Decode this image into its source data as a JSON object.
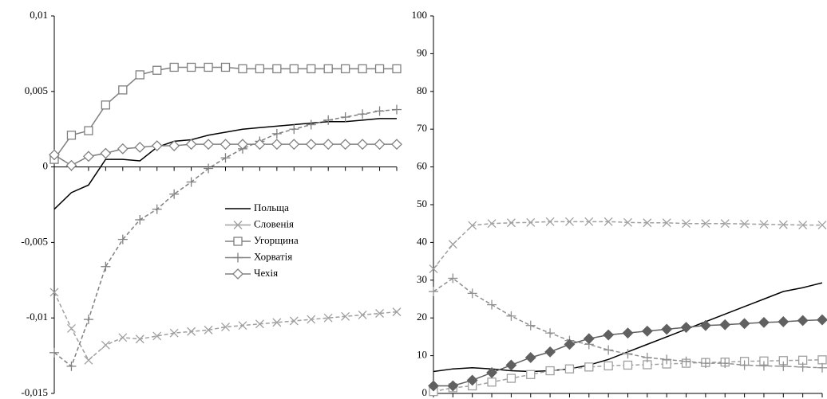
{
  "chart_data": [
    {
      "type": "line",
      "categories": [
        null,
        null,
        null,
        null,
        null,
        null,
        null,
        null,
        null,
        null,
        null,
        null,
        null,
        null,
        null,
        null,
        null,
        null,
        null,
        null,
        null
      ],
      "ylim": [
        -0.015,
        0.01
      ],
      "yticks": [
        {
          "value": -0.015,
          "label": "-0,015"
        },
        {
          "value": -0.01,
          "label": "-0,01"
        },
        {
          "value": -0.005,
          "label": "-0,005"
        },
        0,
        {
          "value": 0.005,
          "label": "0,005"
        },
        {
          "value": 0.01,
          "label": "0,01"
        }
      ],
      "series": [
        {
          "name": "Польща",
          "color": "#000000",
          "marker": "none",
          "dashed": false,
          "values": [
            -0.0028,
            -0.0017,
            -0.0012,
            0.0005,
            0.0005,
            0.0004,
            0.0013,
            0.0017,
            0.0018,
            0.0021,
            0.0023,
            0.0025,
            0.0026,
            0.0027,
            0.0028,
            0.0029,
            0.003,
            0.003,
            0.0031,
            0.0032,
            0.0032
          ]
        },
        {
          "name": "Словенія",
          "color": "#a0a0a0",
          "marker": "x",
          "dashed": true,
          "values": [
            -0.0083,
            -0.0107,
            -0.0128,
            -0.0118,
            -0.0113,
            -0.0114,
            -0.0112,
            -0.011,
            -0.0109,
            -0.0108,
            -0.0106,
            -0.0105,
            -0.0104,
            -0.0103,
            -0.0102,
            -0.0101,
            -0.01,
            -0.0099,
            -0.0098,
            -0.0097,
            -0.0096
          ]
        },
        {
          "name": "Угорщина",
          "color": "#808080",
          "marker": "square",
          "dashed": false,
          "values": [
            0.0005,
            0.0021,
            0.0024,
            0.0041,
            0.0051,
            0.0061,
            0.0064,
            0.0066,
            0.0066,
            0.0066,
            0.0066,
            0.0065,
            0.0065,
            0.0065,
            0.0065,
            0.0065,
            0.0065,
            0.0065,
            0.0065,
            0.0065,
            0.0065
          ]
        },
        {
          "name": "Хорватія",
          "color": "#808080",
          "marker": "plus",
          "dashed": true,
          "values": [
            -0.0123,
            -0.0132,
            -0.0101,
            -0.0066,
            -0.0048,
            -0.0035,
            -0.0028,
            -0.0018,
            -0.001,
            -0.0001,
            0.0006,
            0.0012,
            0.0017,
            0.0022,
            0.0025,
            0.0028,
            0.0031,
            0.0033,
            0.0035,
            0.0037,
            0.0038
          ]
        },
        {
          "name": "Чехія",
          "color": "#808080",
          "marker": "diamond",
          "dashed": false,
          "values": [
            0.0008,
            0.0001,
            0.0007,
            0.0009,
            0.0012,
            0.0013,
            0.0014,
            0.0014,
            0.0015,
            0.0015,
            0.0015,
            0.0015,
            0.0015,
            0.0015,
            0.0015,
            0.0015,
            0.0015,
            0.0015,
            0.0015,
            0.0015,
            0.0015
          ]
        }
      ]
    },
    {
      "type": "line",
      "categories": [
        null,
        null,
        null,
        null,
        null,
        null,
        null,
        null,
        null,
        null,
        null,
        null,
        null,
        null,
        null,
        null,
        null,
        null,
        null,
        null,
        null
      ],
      "ylim": [
        0,
        100
      ],
      "yticks": [
        0,
        10,
        20,
        30,
        40,
        50,
        60,
        70,
        80,
        90,
        100
      ],
      "series": [
        {
          "color": "#000000",
          "marker": "none",
          "dashed": false,
          "values": [
            5.8,
            6.5,
            6.8,
            6.5,
            6,
            5.8,
            6,
            6.5,
            7.5,
            9,
            11,
            13,
            15,
            17,
            19,
            21,
            23,
            25,
            27,
            28,
            29.3
          ]
        },
        {
          "color": "#a0a0a0",
          "marker": "x",
          "dashed": true,
          "values": [
            33,
            39.5,
            44.5,
            45,
            45.2,
            45.3,
            45.5,
            45.5,
            45.5,
            45.5,
            45.3,
            45.2,
            45.2,
            45,
            45,
            45,
            44.9,
            44.8,
            44.7,
            44.6,
            44.6
          ]
        },
        {
          "color": "#a0a0a0",
          "marker": "square",
          "dashed": true,
          "values": [
            0.5,
            1.5,
            2,
            3,
            4,
            5,
            6,
            6.5,
            7,
            7.3,
            7.5,
            7.6,
            7.8,
            8,
            8.2,
            8.3,
            8.5,
            8.6,
            8.7,
            8.8,
            8.9
          ]
        },
        {
          "color": "#909090",
          "marker": "plus",
          "dashed": true,
          "values": [
            27,
            30.5,
            26.5,
            23.5,
            20.5,
            18,
            16,
            14,
            13,
            11.5,
            10.5,
            9.5,
            9,
            8.5,
            8,
            8,
            7.5,
            7.3,
            7.2,
            7,
            6.8
          ]
        },
        {
          "color": "#606060",
          "marker": "diamond",
          "filled": true,
          "dashed": false,
          "values": [
            2,
            2,
            3.5,
            5.5,
            7.5,
            9.5,
            11,
            13,
            14.5,
            15.5,
            16,
            16.5,
            17,
            17.5,
            18,
            18.2,
            18.5,
            18.8,
            19,
            19.3,
            19.5
          ]
        }
      ]
    }
  ]
}
